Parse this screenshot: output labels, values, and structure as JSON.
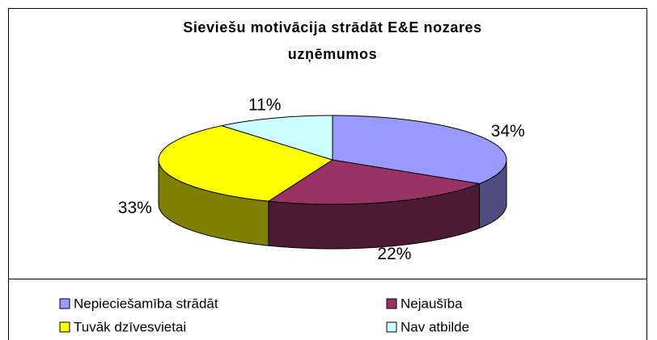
{
  "chart_data": {
    "type": "pie3d",
    "title": "Sieviešu motivācija strādāt E&E nozares uzņēmumos",
    "categories": [
      "Nepieciešamība strādāt",
      "Nejaušība",
      "Tuvāk dzīvesvietai",
      "Nav atbilde"
    ],
    "values": [
      34,
      22,
      33,
      11
    ],
    "value_labels": [
      "34%",
      "22%",
      "33%",
      "11%"
    ],
    "colors": [
      "#9999ff",
      "#993366",
      "#ffff00",
      "#ccffff"
    ],
    "legend": "bottom"
  }
}
